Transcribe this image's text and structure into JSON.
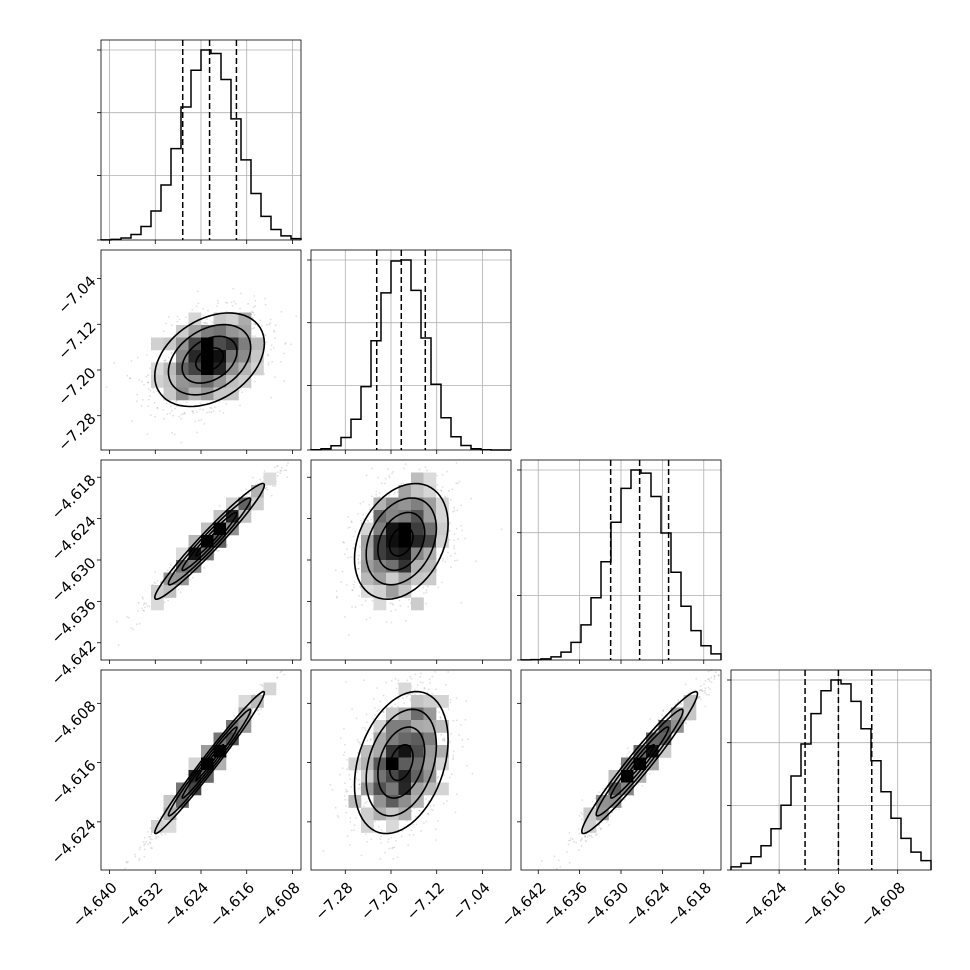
{
  "chart_data": {
    "type": "corner",
    "grid": true,
    "parameters": [
      {
        "mean": -4.6225,
        "std": 0.0048,
        "quantiles": [
          -4.6272,
          -4.6225,
          -4.6178
        ],
        "range": [
          -4.6415,
          -4.6065
        ],
        "ticks": [
          -4.64,
          -4.632,
          -4.624,
          -4.616,
          -4.608
        ],
        "tick_labels": [
          "−4.640",
          "−4.632",
          "−4.624",
          "−4.616",
          "−4.608"
        ]
      },
      {
        "mean": -7.182,
        "std": 0.041,
        "quantiles": [
          -7.225,
          -7.182,
          -7.14
        ],
        "range": [
          -7.34,
          -6.99
        ],
        "ticks": [
          -7.28,
          -7.2,
          -7.12,
          -7.04
        ],
        "tick_labels": [
          "−7.28",
          "−7.20",
          "−7.12",
          "−7.04"
        ]
      },
      {
        "mean": -4.6273,
        "std": 0.0042,
        "quantiles": [
          -4.6315,
          -4.6273,
          -4.6231
        ],
        "range": [
          -4.6445,
          -4.6155
        ],
        "ticks": [
          -4.642,
          -4.636,
          -4.63,
          -4.624,
          -4.618
        ],
        "tick_labels": [
          "−4.642",
          "−4.636",
          "−4.630",
          "−4.624",
          "−4.618"
        ]
      },
      {
        "mean": -4.616,
        "std": 0.0048,
        "quantiles": [
          -4.6205,
          -4.616,
          -4.6115
        ],
        "range": [
          -4.6305,
          -4.6035
        ],
        "ticks": [
          -4.624,
          -4.616,
          -4.608
        ],
        "tick_labels": [
          "−4.624",
          "−4.616",
          "−4.608"
        ]
      }
    ],
    "correlations": [
      [
        1.0,
        0.35,
        0.97,
        0.985
      ],
      [
        0.35,
        1.0,
        0.3,
        0.32
      ],
      [
        0.97,
        0.3,
        1.0,
        0.97
      ],
      [
        0.985,
        0.32,
        0.97,
        1.0
      ]
    ],
    "hist_bins": 20,
    "scatter_points_per_panel": 1400,
    "hist_y_ticks": 4
  }
}
